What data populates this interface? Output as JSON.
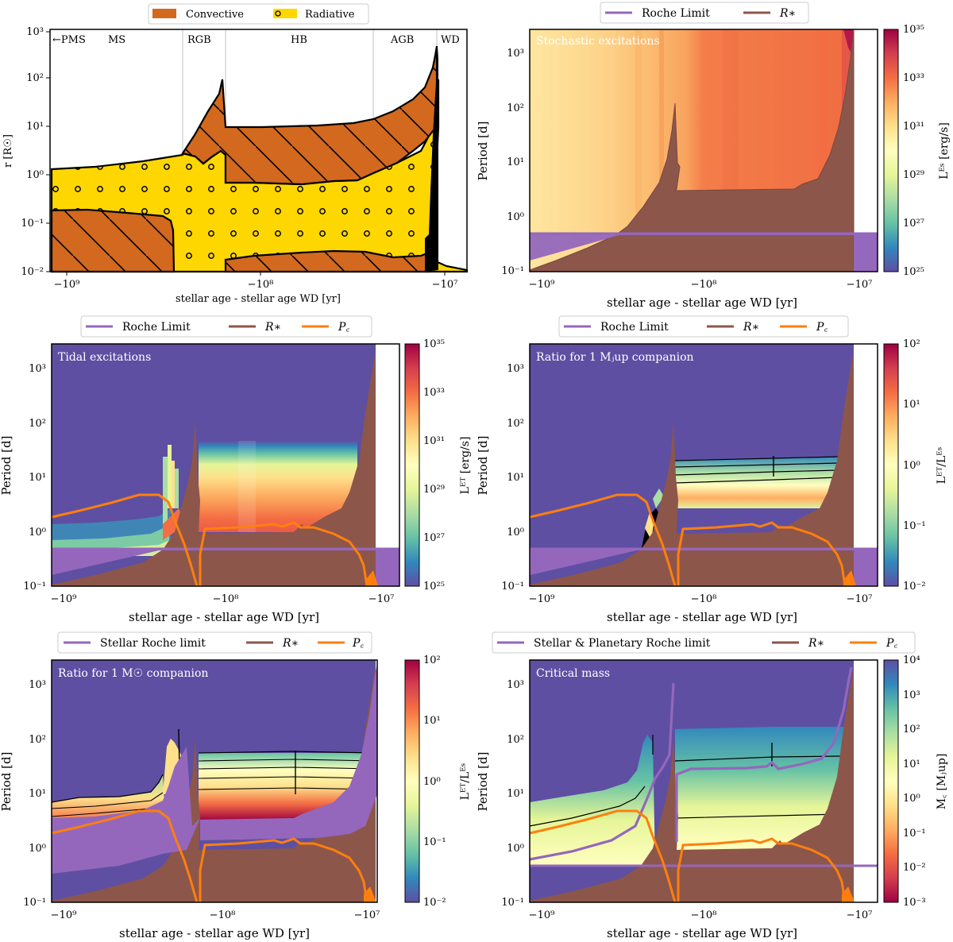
{
  "figure": {
    "xlabel": "stellar age - stellar age WD [yr]",
    "xticks": [
      "−10⁹",
      "−10⁸",
      "−10⁷"
    ],
    "period_label": "Period [d]",
    "period_ticks": [
      "10⁻¹",
      "10⁰",
      "10¹",
      "10²",
      "10³"
    ]
  },
  "panel_a": {
    "ylabel": "r [R☉]",
    "yticks": [
      "10⁻²",
      "10⁻¹",
      "10⁰",
      "10¹",
      "10²",
      "10³"
    ],
    "legend": [
      "Convective",
      "Radiative"
    ],
    "phases": [
      "←PMS",
      "MS",
      "RGB",
      "HB",
      "AGB",
      "WD"
    ]
  },
  "panel_b": {
    "annotation": "Stochastic excitations",
    "legend": [
      "Roche Limit",
      "R∗"
    ],
    "cbar_label": "Lᴱˢ [erg/s]",
    "cbar_ticks": [
      "10²⁵",
      "10²⁷",
      "10²⁹",
      "10³¹",
      "10³³",
      "10³⁵"
    ]
  },
  "panel_c": {
    "annotation": "Tidal excitations",
    "legend": [
      "Roche Limit",
      "R∗",
      "P꜀"
    ],
    "cbar_label": "Lᴱᵀ [erg/s]",
    "cbar_ticks": [
      "10²⁵",
      "10²⁷",
      "10²⁹",
      "10³¹",
      "10³³",
      "10³⁵"
    ]
  },
  "panel_d": {
    "annotation": "Ratio for 1 Mⱼup companion",
    "legend": [
      "Roche Limit",
      "R∗",
      "P꜀"
    ],
    "cbar_label": "Lᴱᵀ/Lᴱˢ",
    "cbar_ticks": [
      "10⁻²",
      "10⁻¹",
      "10⁰",
      "10¹",
      "10²"
    ]
  },
  "panel_e": {
    "annotation": "Ratio for 1 M☉ companion",
    "legend": [
      "Stellar Roche limit",
      "R∗",
      "P꜀"
    ],
    "cbar_label": "Lᴱᵀ/Lᴱˢ",
    "cbar_ticks": [
      "10⁻²",
      "10⁻¹",
      "10⁰",
      "10¹",
      "10²"
    ]
  },
  "panel_f": {
    "annotation": "Critical mass",
    "legend": [
      "Stellar & Planetary Roche limit",
      "R∗",
      "P꜀"
    ],
    "cbar_label": "M꜀ [Mⱼup]",
    "cbar_ticks": [
      "10⁻³",
      "10⁻²",
      "10⁻¹",
      "10⁰",
      "10¹",
      "10²",
      "10³",
      "10⁴"
    ]
  },
  "colors": {
    "convective": "#d2691e",
    "radiative": "#ffd700",
    "roche": "#9467bd",
    "star": "#8c564b",
    "pc": "#ff7f0e",
    "background_cmap_low": "#5e4fa2"
  },
  "chart_data": [
    {
      "id": "a",
      "type": "area",
      "xlim": [
        -1200000000.0,
        -5000000.0
      ],
      "xscale": "symlog-negative",
      "ylim": [
        0.01,
        1000
      ],
      "yscale": "log",
      "phase_boundaries_yr": [
        -230000000.0,
        -130000000.0,
        -30000000.0,
        -12000000.0
      ],
      "surface_radius": [
        [
          -1100000000.0,
          1.5
        ],
        [
          -300000000.0,
          2.5
        ],
        [
          -220000000.0,
          4
        ],
        [
          -140000000.0,
          80
        ],
        [
          -130000000.0,
          10
        ],
        [
          -30000000.0,
          15
        ],
        [
          -12000000.0,
          400
        ],
        [
          -10000000.0,
          0.03
        ],
        [
          -5000000.0,
          0.015
        ]
      ],
      "core_conv_top": [
        [
          -1100000000.0,
          0.2
        ],
        [
          -300000000.0,
          0.15
        ],
        [
          -280000000.0,
          0.012
        ]
      ],
      "hb_conv_top": [
        [
          -130000000.0,
          0.04
        ],
        [
          -30000000.0,
          0.06
        ],
        [
          -15000000.0,
          0.08
        ]
      ]
    },
    {
      "id": "b",
      "type": "heatmap",
      "xlim": [
        -1200000000.0,
        -5000000.0
      ],
      "ylim": [
        0.1,
        2500
      ],
      "yscale": "log",
      "clim": [
        1e+25,
        1e+35
      ],
      "roche_limit_d": 0.47,
      "stellar_radius_period_d": [
        [
          -1100000000.0,
          0.12
        ],
        [
          -300000000.0,
          0.42
        ],
        [
          -200000000.0,
          2.0
        ],
        [
          -160000000.0,
          5
        ],
        [
          -150000000.0,
          100
        ],
        [
          -130000000.0,
          3.0
        ],
        [
          -30000000.0,
          3.5
        ],
        [
          -13000000.0,
          2500
        ],
        [
          -10000000.0,
          0.1
        ]
      ]
    },
    {
      "id": "c",
      "type": "heatmap",
      "clim": [
        1e+25,
        1e+35
      ],
      "pc_period_d": [
        [
          -1100000000.0,
          1.9
        ],
        [
          -360000000.0,
          5.0
        ],
        [
          -260000000.0,
          1.0
        ],
        [
          -150000000.0,
          0.1
        ],
        [
          -130000000.0,
          1.3
        ],
        [
          -45000000.0,
          1.45
        ],
        [
          -20000000.0,
          0.8
        ],
        [
          -11000000.0,
          0.1
        ]
      ]
    },
    {
      "id": "d",
      "type": "heatmap",
      "clim": [
        0.01,
        100
      ]
    },
    {
      "id": "e",
      "type": "heatmap",
      "clim": [
        0.01,
        100
      ]
    },
    {
      "id": "f",
      "type": "heatmap",
      "clim": [
        0.001,
        10000
      ]
    }
  ]
}
